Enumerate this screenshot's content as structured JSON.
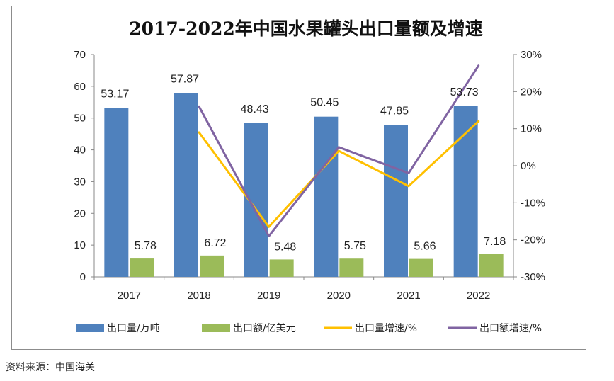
{
  "chart_data": {
    "type": "bar",
    "title": "2017-2022年中国水果罐头出口量额及增速",
    "categories": [
      "2017",
      "2018",
      "2019",
      "2020",
      "2021",
      "2022"
    ],
    "series": [
      {
        "name": "出口量/万吨",
        "type": "bar",
        "axis": "left",
        "color": "#4f81bd",
        "values": [
          53.17,
          57.87,
          48.43,
          50.45,
          47.85,
          53.73
        ],
        "labels": [
          "53.17",
          "57.87",
          "48.43",
          "50.45",
          "47.85",
          "53.73"
        ]
      },
      {
        "name": "出口额/亿美元",
        "type": "bar",
        "axis": "left",
        "color": "#9bbb59",
        "values": [
          5.78,
          6.72,
          5.48,
          5.75,
          5.66,
          7.18
        ],
        "labels": [
          "5.78",
          "6.72",
          "5.48",
          "5.75",
          "5.66",
          "7.18"
        ]
      },
      {
        "name": "出口量增速/%",
        "type": "line",
        "axis": "right",
        "color": "#ffc000",
        "values": [
          null,
          9,
          -16.5,
          4,
          -5.5,
          12
        ]
      },
      {
        "name": "出口额增速/%",
        "type": "line",
        "axis": "right",
        "color": "#8064a2",
        "values": [
          null,
          16,
          -19,
          5,
          -2,
          27
        ]
      }
    ],
    "y_left": {
      "min": 0,
      "max": 70,
      "ticks": [
        "0",
        "10",
        "20",
        "30",
        "40",
        "50",
        "60",
        "70"
      ]
    },
    "y_right": {
      "min": -30,
      "max": 30,
      "ticks": [
        "-30%",
        "-20%",
        "-10%",
        "0%",
        "10%",
        "20%",
        "30%"
      ]
    },
    "legend_position": "bottom",
    "grid": false
  },
  "source": "资料来源：中国海关"
}
